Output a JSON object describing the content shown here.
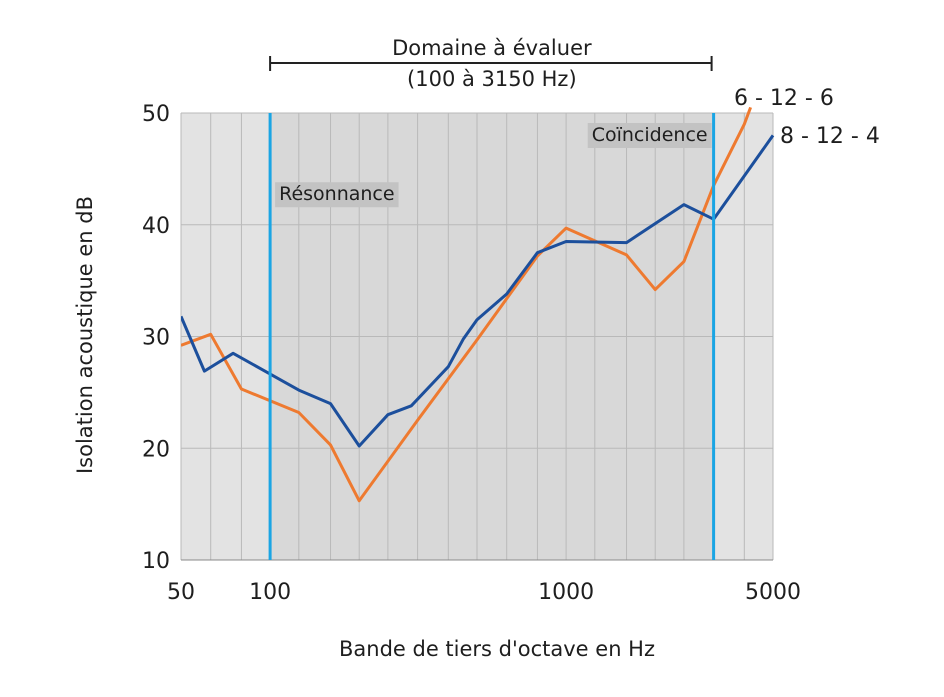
{
  "chart_data": {
    "type": "line",
    "xlabel": "Bande de tiers d'octave en Hz",
    "ylabel": "Isolation acoustique en dB",
    "x_scale": "log",
    "xlim": [
      50,
      5000
    ],
    "ylim": [
      10,
      50
    ],
    "x_ticks": [
      {
        "value": 50,
        "label": "50"
      },
      {
        "value": 100,
        "label": "100"
      },
      {
        "value": 1000,
        "label": "1000"
      },
      {
        "value": 5000,
        "label": "5000"
      }
    ],
    "y_ticks": [
      {
        "value": 10,
        "label": "10"
      },
      {
        "value": 20,
        "label": "20"
      },
      {
        "value": 30,
        "label": "30"
      },
      {
        "value": 40,
        "label": "40"
      },
      {
        "value": 50,
        "label": "50"
      }
    ],
    "x_gridlines": [
      50,
      63,
      80,
      100,
      125,
      160,
      200,
      250,
      315,
      400,
      500,
      630,
      800,
      1000,
      1250,
      1600,
      2000,
      2500,
      3150,
      4000,
      5000
    ],
    "y_gridlines": [
      10,
      20,
      30,
      40,
      50
    ],
    "evaluation_range": {
      "title": "Domaine à évaluer",
      "subtitle": "(100 à 3150 Hz)",
      "from": 100,
      "to": 3150
    },
    "regions": [
      {
        "label": "Résonnance",
        "x": 100,
        "y": 43
      },
      {
        "label": "Coïncidence",
        "x": 3150,
        "y": 50
      }
    ],
    "series": [
      {
        "name": "6 - 12 - 6",
        "color": "#ee7a30",
        "points": [
          [
            50,
            29.2
          ],
          [
            63,
            30.2
          ],
          [
            80,
            25.3
          ],
          [
            125,
            23.2
          ],
          [
            160,
            20.3
          ],
          [
            200,
            15.3
          ],
          [
            315,
            22.5
          ],
          [
            500,
            29.7
          ],
          [
            800,
            37.2
          ],
          [
            1000,
            39.7
          ],
          [
            1600,
            37.3
          ],
          [
            2000,
            34.2
          ],
          [
            2500,
            36.7
          ],
          [
            3150,
            43.5
          ],
          [
            4000,
            49.0
          ],
          [
            4200,
            50.5
          ]
        ]
      },
      {
        "name": "8 - 12 - 4",
        "color": "#1c4f9c",
        "points": [
          [
            50,
            31.8
          ],
          [
            60,
            26.9
          ],
          [
            75,
            28.5
          ],
          [
            125,
            25.2
          ],
          [
            160,
            24.0
          ],
          [
            200,
            20.2
          ],
          [
            250,
            23.0
          ],
          [
            300,
            23.8
          ],
          [
            400,
            27.3
          ],
          [
            450,
            29.8
          ],
          [
            500,
            31.5
          ],
          [
            630,
            33.8
          ],
          [
            800,
            37.5
          ],
          [
            1000,
            38.5
          ],
          [
            1600,
            38.4
          ],
          [
            2500,
            41.8
          ],
          [
            3150,
            40.5
          ],
          [
            5000,
            48.0
          ]
        ]
      }
    ],
    "colors": {
      "plot_background": "#e3e3e3",
      "eval_background": "#d8d8d8",
      "boundary_line": "#1aa5e4",
      "grid": "#b9b9b9",
      "region_label_bg": "#c3c3c3"
    }
  }
}
